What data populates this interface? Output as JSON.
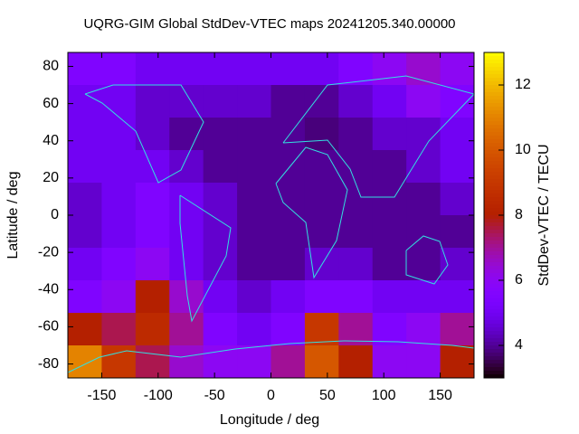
{
  "chart_data": {
    "type": "heatmap",
    "title": "UQRG-GIM Global StdDev-VTEC maps 20241205.340.00000",
    "x_label": "Longitude / deg",
    "y_label": "Latitude / deg",
    "colorbar_label": "StdDev-VTEC / TECU",
    "x": [
      -165,
      -135,
      -105,
      -75,
      -45,
      -15,
      15,
      45,
      75,
      105,
      135,
      165
    ],
    "y": [
      78.75,
      61.25,
      43.75,
      26.25,
      8.75,
      -8.75,
      -26.25,
      -43.75,
      -61.25,
      -78.75
    ],
    "values": [
      [
        5.5,
        5.5,
        5,
        5,
        5,
        5,
        5,
        5,
        5.5,
        6,
        6.5,
        6
      ],
      [
        5,
        5,
        4.5,
        4.5,
        4.5,
        4.5,
        4,
        4,
        4.5,
        5,
        6,
        5.5
      ],
      [
        5,
        5,
        4.5,
        4,
        4,
        4,
        4,
        3.8,
        4,
        4.5,
        4.5,
        5
      ],
      [
        5,
        5,
        5,
        4.5,
        4,
        4,
        4,
        4,
        4,
        4,
        4.5,
        5
      ],
      [
        4.5,
        5,
        5.5,
        5,
        4.5,
        4,
        4,
        4,
        4,
        4,
        4,
        4.5
      ],
      [
        4.5,
        5,
        5.5,
        5,
        4.5,
        4,
        4,
        4,
        4,
        4,
        4,
        4
      ],
      [
        5,
        5.5,
        6,
        5,
        4.5,
        4,
        4,
        4.5,
        4.5,
        4,
        4,
        4.5
      ],
      [
        5.5,
        6,
        8,
        6.5,
        5,
        4.5,
        5,
        5.5,
        5.5,
        5,
        5,
        5
      ],
      [
        8,
        7.5,
        8.5,
        7,
        5.5,
        5,
        5.5,
        9,
        7,
        5.5,
        6,
        7
      ],
      [
        11,
        9,
        7.5,
        6.5,
        6,
        6,
        7,
        10,
        8,
        6,
        6,
        8
      ]
    ],
    "xlim": [
      -180,
      180
    ],
    "ylim": [
      -87.5,
      87.5
    ],
    "xticks": [
      -150,
      -100,
      -50,
      0,
      50,
      100,
      150
    ],
    "yticks": [
      -80,
      -60,
      -40,
      -20,
      0,
      20,
      40,
      60,
      80
    ],
    "zlim": [
      3,
      13
    ],
    "zticks": [
      4,
      6,
      8,
      10,
      12
    ]
  }
}
